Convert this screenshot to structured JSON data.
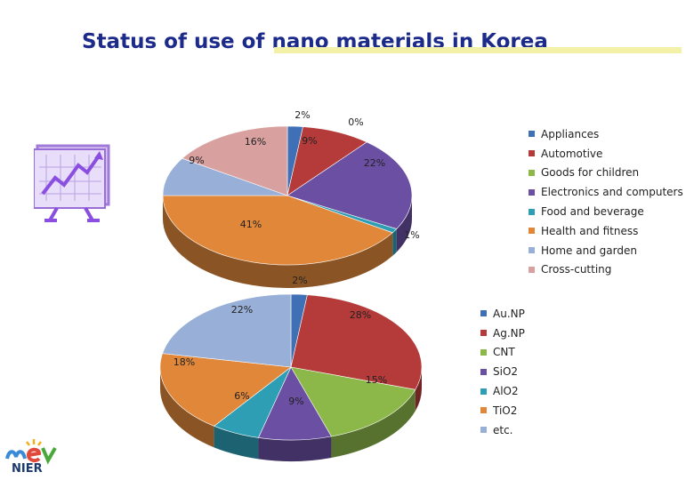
{
  "title": "Status of use of nano materials in Korea",
  "logo_text": "NIER",
  "chart_data": [
    {
      "type": "pie",
      "three_d": true,
      "legend_position": "right",
      "categories": [
        "Appliances",
        "Automotive",
        "Goods for children",
        "Electronics and computers",
        "Food and beverage",
        "Health and fitness",
        "Home and garden",
        "Cross-cutting"
      ],
      "values": [
        2,
        9,
        0,
        22,
        1,
        41,
        9,
        16
      ],
      "labels": [
        "2%",
        "9%",
        "0%",
        "22%",
        "1%",
        "41%",
        "9%",
        "16%"
      ],
      "colors": [
        "#3f6fb5",
        "#b53a3a",
        "#8cb84a",
        "#6b4fa2",
        "#2e9eb5",
        "#e0873a",
        "#98b0d8",
        "#d9a0a0"
      ]
    },
    {
      "type": "pie",
      "three_d": true,
      "legend_position": "right",
      "categories": [
        "Au.NP",
        "Ag.NP",
        "CNT",
        "SiO2",
        "AlO2",
        "TiO2",
        "etc."
      ],
      "values": [
        2,
        28,
        15,
        9,
        6,
        18,
        22
      ],
      "labels": [
        "2%",
        "28%",
        "15%",
        "9%",
        "6%",
        "18%",
        "22%"
      ],
      "colors": [
        "#3f6fb5",
        "#b53a3a",
        "#8cb84a",
        "#6b4fa2",
        "#2e9eb5",
        "#e0873a",
        "#98b0d8"
      ]
    }
  ]
}
